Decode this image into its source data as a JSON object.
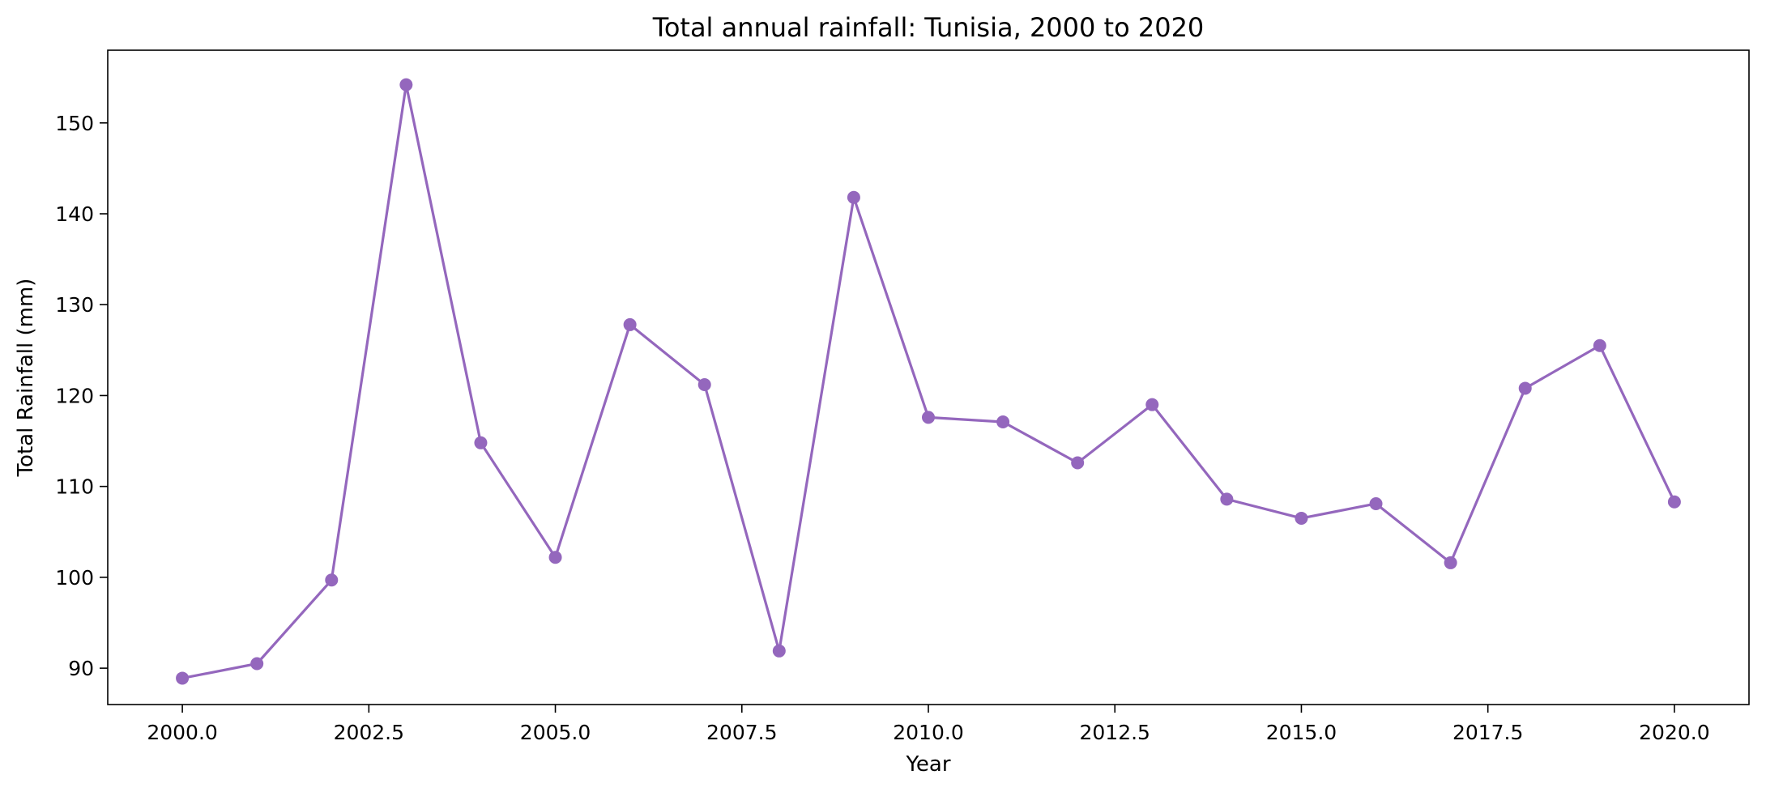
{
  "chart_data": {
    "type": "line",
    "title": "Total annual rainfall: Tunisia, 2000 to 2020",
    "xlabel": "Year",
    "ylabel": "Total Rainfall (mm)",
    "xlim": [
      1999.0,
      2021.0
    ],
    "ylim": [
      86.0,
      158.0
    ],
    "x_ticks": [
      2000.0,
      2002.5,
      2005.0,
      2007.5,
      2010.0,
      2012.5,
      2015.0,
      2017.5,
      2020.0
    ],
    "x_tick_labels": [
      "2000.0",
      "2002.5",
      "2005.0",
      "2007.5",
      "2010.0",
      "2012.5",
      "2015.0",
      "2017.5",
      "2020.0"
    ],
    "y_ticks": [
      90,
      100,
      110,
      120,
      130,
      140,
      150
    ],
    "y_tick_labels": [
      "90",
      "100",
      "110",
      "120",
      "130",
      "140",
      "150"
    ],
    "grid": false,
    "color": "#9467bd",
    "series": [
      {
        "x": [
          2000,
          2001,
          2002,
          2003,
          2004,
          2005,
          2006,
          2007,
          2008,
          2009,
          2010,
          2011,
          2012,
          2013,
          2014,
          2015,
          2016,
          2017,
          2018,
          2019,
          2020
        ],
        "values": [
          88.9,
          90.5,
          99.7,
          154.2,
          114.8,
          102.2,
          127.8,
          121.2,
          91.9,
          141.8,
          117.6,
          117.1,
          112.6,
          119.0,
          108.6,
          106.5,
          108.1,
          101.6,
          120.8,
          125.5,
          108.3
        ]
      }
    ]
  }
}
